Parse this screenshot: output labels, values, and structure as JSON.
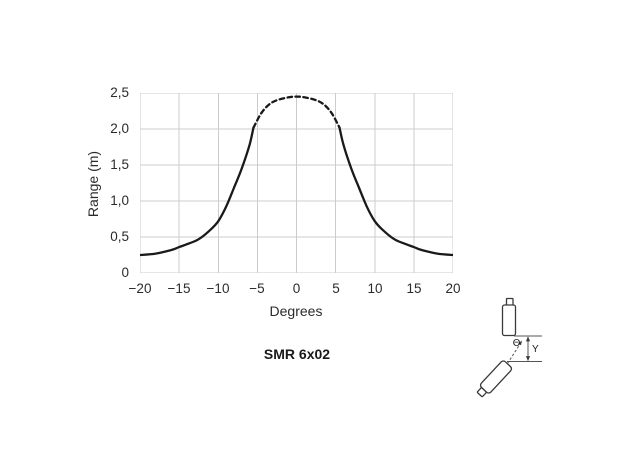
{
  "chart_data": {
    "type": "line",
    "title": "SMR 6x02",
    "xlabel": "Degrees",
    "ylabel": "Range (m)",
    "xlim": [
      -20,
      20
    ],
    "ylim": [
      0,
      2.5
    ],
    "grid": true,
    "line_color": "#1a1a1a",
    "grid_color": "#cccccc",
    "x_ticks": [
      "−20",
      "−15",
      "−10",
      "−5",
      "0",
      "5",
      "10",
      "15",
      "20"
    ],
    "x_tick_values": [
      -20,
      -15,
      -10,
      -5,
      0,
      5,
      10,
      15,
      20
    ],
    "y_ticks": [
      "0",
      "0,5",
      "1,0",
      "1,5",
      "2,0",
      "2,5"
    ],
    "y_tick_values": [
      0,
      0.5,
      1.0,
      1.5,
      2.0,
      2.5
    ],
    "series": [
      {
        "name": "beam-pattern-solid-left",
        "style": "solid",
        "points": [
          [
            -20,
            0.25
          ],
          [
            -18,
            0.27
          ],
          [
            -16,
            0.32
          ],
          [
            -15,
            0.36
          ],
          [
            -14,
            0.4
          ],
          [
            -12.5,
            0.47
          ],
          [
            -11,
            0.6
          ],
          [
            -10,
            0.72
          ],
          [
            -9,
            0.92
          ],
          [
            -8,
            1.18
          ],
          [
            -7,
            1.45
          ],
          [
            -6,
            1.78
          ],
          [
            -5.5,
            2.02
          ]
        ]
      },
      {
        "name": "beam-pattern-dashed-top",
        "style": "dashed",
        "points": [
          [
            -5.5,
            2.02
          ],
          [
            -4.5,
            2.22
          ],
          [
            -3.5,
            2.34
          ],
          [
            -2.5,
            2.4
          ],
          [
            -1,
            2.44
          ],
          [
            0,
            2.45
          ],
          [
            1,
            2.44
          ],
          [
            2.5,
            2.4
          ],
          [
            3.5,
            2.34
          ],
          [
            4.5,
            2.22
          ],
          [
            5.5,
            2.02
          ]
        ]
      },
      {
        "name": "beam-pattern-solid-right",
        "style": "solid",
        "points": [
          [
            5.5,
            2.02
          ],
          [
            6,
            1.78
          ],
          [
            7,
            1.45
          ],
          [
            8,
            1.18
          ],
          [
            9,
            0.92
          ],
          [
            10,
            0.72
          ],
          [
            11,
            0.6
          ],
          [
            12.5,
            0.47
          ],
          [
            14,
            0.4
          ],
          [
            15,
            0.36
          ],
          [
            16,
            0.32
          ],
          [
            18,
            0.27
          ],
          [
            20,
            0.25
          ]
        ]
      }
    ]
  },
  "diagram": {
    "theta_label": "Θ",
    "y_label": "Y"
  }
}
